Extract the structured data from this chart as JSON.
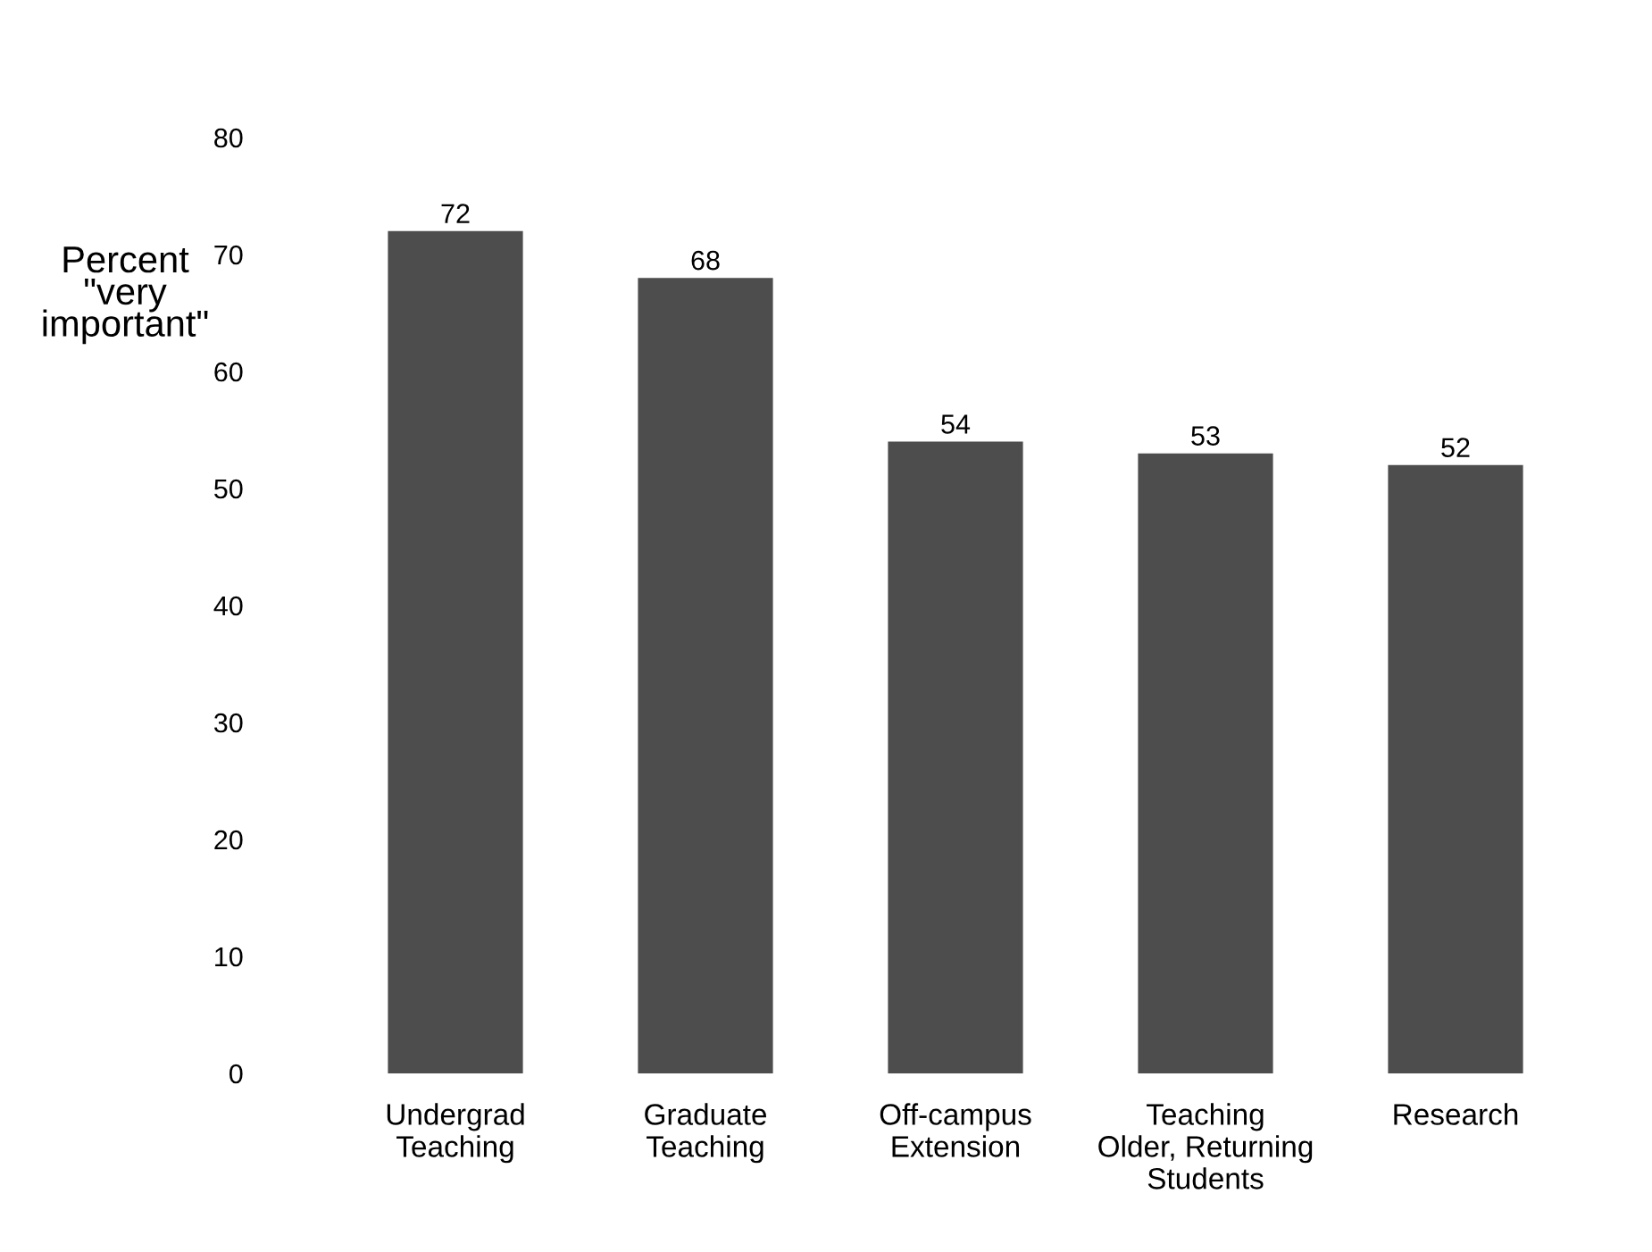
{
  "chart_data": {
    "type": "bar",
    "ylabel": "Percent\n\"very\nimportant\"",
    "categories": [
      "Undergrad\nTeaching",
      "Graduate\nTeaching",
      "Off-campus\nExtension",
      "Teaching\nOlder, Returning\nStudents",
      "Research"
    ],
    "values": [
      72,
      68,
      54,
      53,
      52
    ],
    "color": "#4d4d4d",
    "ylim": [
      0,
      80
    ],
    "yticks": [
      0,
      10,
      20,
      30,
      40,
      50,
      60,
      70,
      80
    ],
    "grid": false,
    "data_labels": true
  }
}
